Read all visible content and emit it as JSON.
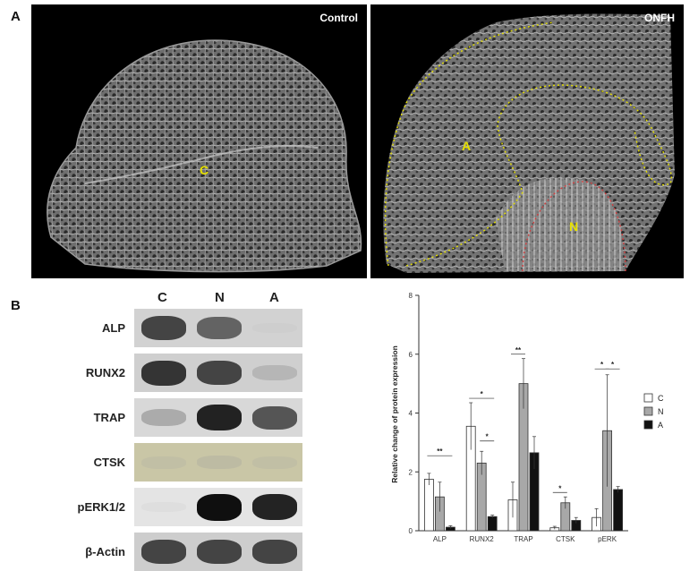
{
  "panel_a": {
    "letter": "A",
    "left_label": "Control",
    "right_label": "ONFH",
    "region_c": "C",
    "region_a": "A",
    "region_n": "N"
  },
  "panel_b": {
    "letter": "B",
    "columns": [
      "C",
      "N",
      "A"
    ],
    "rows": [
      {
        "label": "ALP",
        "intensity": [
          0.85,
          0.75,
          0.05
        ],
        "bg": "#d2d2d2"
      },
      {
        "label": "RUNX2",
        "intensity": [
          0.9,
          0.85,
          0.35
        ],
        "bg": "#cfcfcf"
      },
      {
        "label": "TRAP",
        "intensity": [
          0.45,
          0.95,
          0.8
        ],
        "bg": "#d8d8d8"
      },
      {
        "label": "CTSK",
        "intensity": [
          0.2,
          0.25,
          0.2
        ],
        "bg": "#c9c6a6"
      },
      {
        "label": "pERK1/2",
        "intensity": [
          0.05,
          1.0,
          0.95
        ],
        "bg": "#e4e4e4"
      },
      {
        "label": "β-Actin",
        "intensity": [
          0.85,
          0.85,
          0.85
        ],
        "bg": "#cdcdcd"
      }
    ]
  },
  "chart_data": {
    "type": "bar",
    "ylabel": "Relative change of protein expression",
    "ylim": [
      0,
      8
    ],
    "yticks": [
      0,
      2,
      4,
      6,
      8
    ],
    "categories": [
      "ALP",
      "RUNX2",
      "TRAP",
      "CTSK",
      "pERK"
    ],
    "series": [
      {
        "name": "C",
        "color": "#ffffff",
        "values": [
          1.75,
          3.55,
          1.05,
          0.1,
          0.45
        ],
        "errors": [
          0.2,
          0.8,
          0.6,
          0.05,
          0.3
        ]
      },
      {
        "name": "N",
        "color": "#a8a8a8",
        "values": [
          1.15,
          2.3,
          5.0,
          0.95,
          3.4
        ],
        "errors": [
          0.5,
          0.4,
          0.85,
          0.2,
          1.9
        ]
      },
      {
        "name": "A",
        "color": "#111111",
        "values": [
          0.12,
          0.48,
          2.65,
          0.35,
          1.4
        ],
        "errors": [
          0.05,
          0.05,
          0.55,
          0.1,
          0.1
        ]
      }
    ],
    "significance": [
      {
        "category": 0,
        "from": 0,
        "to": 2,
        "y": 2.55,
        "label": "**"
      },
      {
        "category": 1,
        "from": 0,
        "to": 2,
        "y": 4.5,
        "label": "*"
      },
      {
        "category": 1,
        "from": 1,
        "to": 2,
        "y": 3.05,
        "label": "*"
      },
      {
        "category": 2,
        "from": 0,
        "to": 1,
        "y": 6.0,
        "label": "**"
      },
      {
        "category": 3,
        "from": 0,
        "to": 1,
        "y": 1.3,
        "label": "*"
      },
      {
        "category": 4,
        "from": 0,
        "to": 1,
        "y": 5.5,
        "label": "*"
      },
      {
        "category": 4,
        "from": 1,
        "to": 2,
        "y": 5.5,
        "label": "*"
      }
    ],
    "legend": {
      "position": "right",
      "entries": [
        "C",
        "N",
        "A"
      ]
    }
  }
}
